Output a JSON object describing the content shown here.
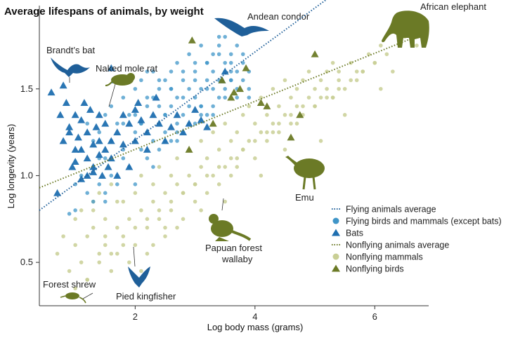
{
  "chart_data": {
    "type": "scatter",
    "title": "Average lifespans of animals, by weight",
    "xlabel": "Log body mass (grams)",
    "ylabel": "Log longevity (years)",
    "xlim": [
      0.4,
      6.9
    ],
    "ylim": [
      0.25,
      1.98
    ],
    "x_ticks": [
      2,
      4,
      6
    ],
    "y_ticks": [
      0.5,
      1.0,
      1.5
    ],
    "x_tick_labels": [
      "2",
      "4",
      "6"
    ],
    "y_tick_labels": [
      "0.5",
      "1.0",
      "1.5"
    ],
    "grid": false,
    "legend_position": "bottom-right",
    "colors": {
      "flying": "#1f5f99",
      "flying_points": "#3f95c8",
      "nonflying": "#6b7a26",
      "nonflying_points": "#c9cf95"
    },
    "legend": [
      {
        "label": "Flying animals average",
        "marker": "dotted-line",
        "color": "#1f5f99"
      },
      {
        "label": "Flying birds and mammals (except bats)",
        "marker": "circle",
        "color": "#3f95c8"
      },
      {
        "label": "Bats",
        "marker": "triangle",
        "color": "#1f6fb0"
      },
      {
        "label": "Nonflying animals average",
        "marker": "dotted-line",
        "color": "#6b7a26"
      },
      {
        "label": "Nonflying mammals",
        "marker": "circle",
        "color": "#c9cf95"
      },
      {
        "label": "Nonflying birds",
        "marker": "triangle",
        "color": "#6b7a26"
      }
    ],
    "trend_lines": [
      {
        "name": "Flying animals average",
        "x": [
          0.4,
          5.45
        ],
        "y": [
          0.8,
          2.08
        ],
        "color": "#1f5f99"
      },
      {
        "name": "Nonflying animals average",
        "x": [
          0.4,
          6.9
        ],
        "y": [
          0.93,
          1.83
        ],
        "color": "#6b7a26"
      }
    ],
    "series": [
      {
        "name": "Flying birds and mammals (except bats)",
        "marker": "circle",
        "x": [
          0.9,
          1.0,
          1.1,
          1.1,
          1.2,
          1.2,
          1.3,
          1.3,
          1.4,
          1.4,
          1.5,
          1.5,
          1.5,
          1.6,
          1.6,
          1.7,
          1.7,
          1.8,
          1.8,
          1.9,
          1.9,
          2.0,
          2.0,
          2.0,
          2.1,
          2.1,
          2.2,
          2.2,
          2.2,
          2.3,
          2.3,
          2.3,
          2.4,
          2.4,
          2.4,
          2.5,
          2.5,
          2.5,
          2.6,
          2.6,
          2.6,
          2.7,
          2.7,
          2.7,
          2.8,
          2.8,
          2.8,
          2.9,
          2.9,
          2.9,
          3.0,
          3.0,
          3.0,
          3.1,
          3.1,
          3.1,
          3.2,
          3.2,
          3.2,
          3.3,
          3.3,
          3.3,
          3.4,
          3.4,
          3.4,
          3.5,
          3.5,
          3.5,
          3.6,
          3.6,
          3.6,
          3.7,
          3.7,
          3.7,
          3.8,
          3.8,
          3.8,
          3.9,
          3.9,
          1.2,
          1.4,
          1.6,
          1.8,
          2.0,
          2.2,
          2.4,
          2.6,
          2.8,
          3.0,
          3.2,
          3.4,
          3.6,
          1.5,
          1.7,
          1.9,
          2.1,
          2.3,
          2.5,
          2.7,
          2.9,
          3.1,
          3.3,
          3.5,
          3.7,
          2.2,
          2.6,
          3.0,
          3.4,
          1.3,
          1.8,
          2.4,
          2.8,
          3.2,
          3.6,
          2.0,
          2.5,
          3.1,
          3.5,
          1.0,
          1.6,
          2.1,
          2.7,
          3.3,
          3.9
        ],
        "y": [
          0.78,
          0.95,
          1.0,
          1.15,
          0.9,
          1.3,
          1.05,
          1.2,
          0.95,
          1.25,
          1.1,
          1.35,
          0.85,
          1.2,
          1.4,
          1.0,
          1.3,
          1.15,
          1.45,
          1.05,
          1.35,
          1.2,
          1.5,
          0.95,
          1.3,
          1.55,
          1.1,
          1.4,
          1.25,
          1.2,
          1.45,
          1.6,
          1.3,
          1.5,
          1.15,
          1.35,
          1.55,
          1.25,
          1.4,
          1.6,
          1.2,
          1.45,
          1.3,
          1.65,
          1.35,
          1.55,
          1.25,
          1.4,
          1.7,
          1.5,
          1.45,
          1.6,
          1.3,
          1.5,
          1.75,
          1.4,
          1.55,
          1.35,
          1.65,
          1.5,
          1.7,
          1.6,
          1.55,
          1.75,
          1.45,
          1.6,
          1.8,
          1.5,
          1.65,
          1.7,
          1.55,
          1.6,
          1.75,
          1.45,
          1.65,
          1.55,
          1.7,
          1.6,
          1.5,
          1.0,
          1.1,
          1.2,
          1.3,
          1.35,
          1.45,
          1.55,
          1.5,
          1.6,
          1.55,
          1.65,
          1.7,
          1.6,
          0.9,
          0.95,
          1.05,
          1.15,
          1.05,
          1.2,
          1.25,
          1.3,
          1.35,
          1.4,
          1.45,
          1.5,
          1.6,
          1.5,
          1.65,
          1.8,
          0.85,
          1.1,
          1.4,
          1.45,
          1.5,
          1.55,
          1.25,
          1.35,
          1.4,
          1.65,
          0.8,
          1.0,
          1.3,
          1.2,
          1.35,
          1.45
        ]
      },
      {
        "name": "Bats",
        "marker": "triangle",
        "x": [
          0.6,
          0.75,
          0.8,
          0.85,
          0.9,
          0.95,
          1.0,
          1.0,
          1.05,
          1.1,
          1.1,
          1.15,
          1.2,
          1.2,
          1.25,
          1.3,
          1.3,
          1.35,
          1.4,
          1.4,
          1.45,
          1.5,
          1.5,
          1.55,
          1.6,
          1.6,
          1.7,
          1.7,
          1.8,
          1.8,
          1.9,
          1.9,
          2.0,
          2.0,
          2.1,
          2.2,
          2.2,
          2.3,
          2.4,
          2.5,
          2.6,
          2.7,
          2.8,
          2.9,
          3.0,
          3.1,
          3.2,
          0.8,
          0.9,
          1.0,
          1.1,
          1.2,
          1.3,
          1.4,
          0.7,
          1.6,
          1.65,
          2.05,
          2.35,
          3.45,
          3.5
        ],
        "y": [
          1.48,
          1.35,
          1.2,
          1.42,
          1.28,
          1.05,
          1.35,
          1.15,
          1.22,
          1.32,
          0.98,
          1.42,
          1.25,
          1.1,
          1.38,
          1.18,
          1.02,
          1.28,
          1.12,
          1.35,
          1.0,
          1.15,
          1.3,
          1.05,
          1.2,
          1.1,
          1.25,
          1.0,
          1.18,
          1.35,
          1.05,
          1.3,
          1.2,
          1.38,
          1.32,
          1.25,
          1.15,
          1.35,
          1.3,
          1.2,
          1.28,
          1.35,
          1.25,
          1.3,
          1.38,
          1.32,
          1.28,
          1.52,
          1.25,
          1.08,
          1.15,
          1.0,
          1.05,
          1.2,
          0.9,
          1.62,
          1.55,
          1.42,
          1.45,
          1.55,
          1.6
        ]
      },
      {
        "name": "Nonflying mammals",
        "marker": "circle",
        "x": [
          0.7,
          0.8,
          0.9,
          1.0,
          1.0,
          1.1,
          1.1,
          1.2,
          1.2,
          1.3,
          1.3,
          1.4,
          1.4,
          1.5,
          1.5,
          1.6,
          1.6,
          1.7,
          1.7,
          1.8,
          1.8,
          1.9,
          1.9,
          2.0,
          2.0,
          2.1,
          2.1,
          2.2,
          2.2,
          2.3,
          2.3,
          2.4,
          2.4,
          2.5,
          2.5,
          2.6,
          2.6,
          2.7,
          2.7,
          2.8,
          2.8,
          2.9,
          2.9,
          3.0,
          3.0,
          3.1,
          3.1,
          3.2,
          3.2,
          3.3,
          3.3,
          3.4,
          3.4,
          3.5,
          3.5,
          3.6,
          3.6,
          3.7,
          3.7,
          3.8,
          3.8,
          3.9,
          3.9,
          4.0,
          4.0,
          4.1,
          4.1,
          4.2,
          4.2,
          4.3,
          4.3,
          4.4,
          4.4,
          4.5,
          4.5,
          4.6,
          4.6,
          4.7,
          4.7,
          4.8,
          4.8,
          4.9,
          4.9,
          5.0,
          5.0,
          5.1,
          5.1,
          5.2,
          5.2,
          5.3,
          5.3,
          5.4,
          5.4,
          5.5,
          5.6,
          5.7,
          5.8,
          5.9,
          6.0,
          6.1,
          6.2,
          6.3,
          6.5,
          6.7,
          1.0,
          1.2,
          1.4,
          1.6,
          1.8,
          2.0,
          2.2,
          2.4,
          2.6,
          2.8,
          3.0,
          3.2,
          3.4,
          3.6,
          3.8,
          4.0,
          4.2,
          4.4,
          4.6,
          4.8,
          5.0,
          5.2,
          5.4,
          5.6,
          5.8,
          6.0,
          1.5,
          2.5,
          3.5,
          4.5,
          5.5,
          1.3,
          2.3,
          3.3,
          4.3,
          5.3,
          2.1,
          3.1,
          4.1,
          5.1,
          6.1,
          1.7,
          2.7,
          3.7,
          4.7,
          5.7
        ],
        "y": [
          0.55,
          0.65,
          0.45,
          0.6,
          0.75,
          0.5,
          0.8,
          0.65,
          0.4,
          0.7,
          0.85,
          0.55,
          0.9,
          0.6,
          0.75,
          0.45,
          0.95,
          0.7,
          0.55,
          0.85,
          0.65,
          0.75,
          0.5,
          0.9,
          0.6,
          0.8,
          1.0,
          0.7,
          0.55,
          0.85,
          0.95,
          0.75,
          1.05,
          0.65,
          0.9,
          1.0,
          0.8,
          0.7,
          1.1,
          0.9,
          0.75,
          1.0,
          1.15,
          0.85,
          0.95,
          1.05,
          1.2,
          0.9,
          1.1,
          1.0,
          1.25,
          1.15,
          0.95,
          1.05,
          1.3,
          1.2,
          1.0,
          1.25,
          1.1,
          1.35,
          1.15,
          1.2,
          1.4,
          1.3,
          1.1,
          1.25,
          1.45,
          1.35,
          1.2,
          1.3,
          1.5,
          1.4,
          1.25,
          1.35,
          1.55,
          1.45,
          1.3,
          1.4,
          1.5,
          1.35,
          1.55,
          1.45,
          1.6,
          1.4,
          1.5,
          1.55,
          1.45,
          1.6,
          1.5,
          1.65,
          1.45,
          1.55,
          1.6,
          1.5,
          1.65,
          1.55,
          1.6,
          1.7,
          1.65,
          1.75,
          1.7,
          1.6,
          1.8,
          1.75,
          0.35,
          0.4,
          0.5,
          0.55,
          0.6,
          0.7,
          0.75,
          0.8,
          0.85,
          0.9,
          0.95,
          1.0,
          1.05,
          1.1,
          1.15,
          1.2,
          1.25,
          1.3,
          1.35,
          1.4,
          1.4,
          1.45,
          1.5,
          1.55,
          1.6,
          1.65,
          0.65,
          0.7,
          0.85,
          1.15,
          1.35,
          0.8,
          0.6,
          0.75,
          1.25,
          1.45,
          0.45,
          0.8,
          1.0,
          1.2,
          1.5,
          0.85,
          0.95,
          1.05,
          1.3,
          1.6
        ]
      },
      {
        "name": "Nonflying birds",
        "marker": "triangle",
        "x": [
          2.95,
          3.45,
          3.6,
          3.65,
          3.75,
          3.85,
          4.1,
          4.2,
          4.6,
          4.75,
          5.0,
          2.9,
          3.3
        ],
        "y": [
          1.78,
          1.55,
          1.45,
          1.48,
          1.5,
          1.62,
          1.42,
          1.4,
          1.22,
          1.35,
          1.7,
          1.15,
          1.3
        ]
      }
    ],
    "annotations": [
      {
        "text": "Andean condor",
        "x": 4.75,
        "y": 1.96,
        "pointer": false,
        "pictogram": "condor-silhouette"
      },
      {
        "text": "African elephant",
        "x": 6.85,
        "y": 2.01,
        "pointer": false,
        "pictogram": "elephant-silhouette"
      },
      {
        "text": "Brandt’s bat",
        "x": 0.85,
        "y": 1.82,
        "pointer": true,
        "pictogram": "bat-silhouette"
      },
      {
        "text": "Naked mole rat",
        "x": 1.75,
        "y": 1.7,
        "pointer": true,
        "pictogram": "mole-rat-silhouette"
      },
      {
        "text": "Emu",
        "x": 4.8,
        "y": 0.88,
        "pointer": false,
        "pictogram": "emu-silhouette"
      },
      {
        "text": "Papuan forest",
        "x": 3.6,
        "y": 0.58,
        "pointer": true,
        "pictogram": "wallaby-silhouette"
      },
      {
        "text": "wallaby",
        "x": 3.6,
        "y": 0.51,
        "pointer": false
      },
      {
        "text": "Forest shrew",
        "x": 0.9,
        "y": 0.34,
        "pointer": true,
        "pictogram": "shrew-silhouette"
      },
      {
        "text": "Pied kingfisher",
        "x": 2.15,
        "y": 0.29,
        "pointer": true,
        "pictogram": "kingfisher-silhouette"
      }
    ]
  }
}
